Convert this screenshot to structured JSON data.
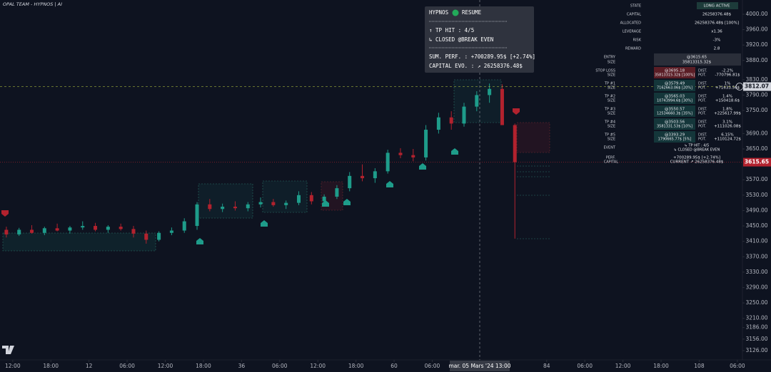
{
  "chart_data": {
    "type": "candlestick",
    "title": "OPAL TEAM - HYPNOS | AI",
    "candles": {
      "x": [
        -1,
        1,
        3,
        5,
        7,
        9,
        11,
        13,
        15,
        17,
        19,
        21,
        23,
        25,
        27,
        29,
        31,
        33,
        35,
        37,
        39,
        41,
        43,
        45,
        47,
        49,
        51,
        53,
        55,
        57,
        59,
        61,
        63,
        65,
        67,
        69,
        71,
        73,
        75,
        77,
        79
      ],
      "open": [
        3440,
        3428,
        3440,
        3432,
        3444,
        3438,
        3446,
        3450,
        3440,
        3448,
        3442,
        3430,
        3414,
        3432,
        3438,
        3450,
        3506,
        3494,
        3500,
        3496,
        3506,
        3512,
        3504,
        3510,
        3530,
        3514,
        3526,
        3548,
        3580,
        3574,
        3592,
        3640,
        3634,
        3628,
        3700,
        3732,
        3716,
        3760,
        3790,
        3806,
        3712
      ],
      "high": [
        3448,
        3445,
        3452,
        3448,
        3456,
        3450,
        3462,
        3458,
        3452,
        3456,
        3450,
        3438,
        3436,
        3446,
        3470,
        3512,
        3520,
        3508,
        3514,
        3512,
        3524,
        3520,
        3516,
        3540,
        3538,
        3532,
        3556,
        3590,
        3610,
        3600,
        3648,
        3652,
        3650,
        3712,
        3744,
        3748,
        3770,
        3800,
        3820,
        3818,
        3716
      ],
      "low": [
        3420,
        3424,
        3430,
        3426,
        3436,
        3430,
        3440,
        3436,
        3432,
        3438,
        3420,
        3404,
        3410,
        3426,
        3432,
        3440,
        3488,
        3486,
        3490,
        3488,
        3498,
        3500,
        3494,
        3504,
        3506,
        3508,
        3520,
        3540,
        3566,
        3562,
        3586,
        3626,
        3618,
        3620,
        3690,
        3700,
        3708,
        3748,
        3770,
        3760,
        3417
      ],
      "close": [
        3428,
        3440,
        3432,
        3444,
        3438,
        3446,
        3450,
        3440,
        3448,
        3442,
        3430,
        3414,
        3432,
        3438,
        3462,
        3506,
        3494,
        3500,
        3496,
        3506,
        3512,
        3504,
        3510,
        3530,
        3514,
        3526,
        3548,
        3580,
        3574,
        3592,
        3640,
        3634,
        3628,
        3700,
        3732,
        3716,
        3760,
        3790,
        3806,
        3712,
        3615.65
      ]
    },
    "up_color": "#1e9c8a",
    "down_color": "#b2222e",
    "xlim": [
      -2,
      114.8
    ],
    "xticks": [
      {
        "value": 0,
        "label": "12:00"
      },
      {
        "value": 6,
        "label": "18:00"
      },
      12,
      {
        "value": 18,
        "label": "06:00"
      },
      {
        "value": 24,
        "label": "12:00"
      },
      {
        "value": 30,
        "label": "18:00"
      },
      36,
      {
        "value": 42,
        "label": "06:00"
      },
      {
        "value": 48,
        "label": "12:00"
      },
      {
        "value": 54,
        "label": "18:00"
      },
      60,
      {
        "value": 66,
        "label": "06:00"
      },
      84,
      {
        "value": 90,
        "label": "06:00"
      },
      {
        "value": 96,
        "label": "12:00"
      },
      {
        "value": 102,
        "label": "18:00"
      },
      108,
      {
        "value": 114,
        "label": "06:00"
      }
    ],
    "ylim": [
      3102,
      4037
    ],
    "yticks": [
      {
        "value": 4000,
        "label": "4000.00"
      },
      {
        "value": 3960,
        "label": "3960.00"
      },
      {
        "value": 3920,
        "label": "3920.00"
      },
      {
        "value": 3880,
        "label": "3880.00"
      },
      {
        "value": 3830,
        "label": "3830.00"
      },
      {
        "value": 3790,
        "label": "3790.00"
      },
      {
        "value": 3750,
        "label": "3750.00"
      },
      {
        "value": 3690,
        "label": "3690.00"
      },
      {
        "value": 3650,
        "label": "3650.00"
      },
      {
        "value": 3570,
        "label": "3570.00"
      },
      {
        "value": 3530,
        "label": "3530.00"
      },
      {
        "value": 3490,
        "label": "3490.00"
      },
      {
        "value": 3450,
        "label": "3450.00"
      },
      {
        "value": 3410,
        "label": "3410.00"
      },
      {
        "value": 3370,
        "label": "3370.00"
      },
      {
        "value": 3330,
        "label": "3330.00"
      },
      {
        "value": 3290,
        "label": "3290.00"
      },
      {
        "value": 3250,
        "label": "3250.00"
      },
      {
        "value": 3210,
        "label": "3210.00"
      },
      {
        "value": 3186,
        "label": "3186.00"
      },
      {
        "value": 3156,
        "label": "3156.00"
      },
      {
        "value": 3126,
        "label": "3126.00"
      }
    ],
    "crosshair_price": 3812.07,
    "last_price": 3615.65,
    "crosshair_time": "mar. 05 Mars '24   13:00"
  },
  "tooltip": {
    "name": "HYPNOS",
    "status": "RESUME",
    "event": "↑ TP HIT : 4/5",
    "closed": "↳ CLOSED @BREAK EVEN",
    "perf": "SUM. PERF. : +700289.95$ [+2.74%]",
    "capital": "CAPITAL EVO. : ↗ 26258376.48$"
  },
  "panel": {
    "summary": [
      [
        "STATE",
        "LONG ACTIVE"
      ],
      [
        "CAPITAL",
        "26258376.48$"
      ],
      [
        "ALLOCATED",
        "26258376.48$ [100%]"
      ],
      [
        "LEVERAGE",
        "x1.36"
      ],
      [
        "RISK",
        "-3%"
      ],
      [
        "REWARD",
        "2.8"
      ]
    ],
    "entry": {
      "name": "ENTRY",
      "size_label": "SIZE",
      "price": "@3615.65",
      "size": "35813315.32$"
    },
    "levels": [
      {
        "name": "STOP LOSS",
        "size_label": "SIZE",
        "price": "@3695.18",
        "size": "35813315.32$ [100%]",
        "dist_label": "DIST.",
        "dist": "-2.2%",
        "pot_label": "POT.",
        "pot": "-770796.81$"
      },
      {
        "name": "TP #1",
        "size_label": "SIZE",
        "price": "@3579.49",
        "size": "7162663.06$ [20%]",
        "dist_label": "DIST.",
        "dist": "1%",
        "pot_label": "POT.",
        "pot": "+71633.56$"
      },
      {
        "name": "TP #2",
        "size_label": "SIZE",
        "price": "@3565.03",
        "size": "10743994.6$ [30%]",
        "dist_label": "DIST.",
        "dist": "1.4%",
        "pot_label": "POT.",
        "pot": "+150418.6$"
      },
      {
        "name": "TP #3",
        "size_label": "SIZE",
        "price": "@3550.57",
        "size": "12534660.3$ [35%]",
        "dist_label": "DIST.",
        "dist": "1.8%",
        "pot_label": "POT.",
        "pot": "+225617.99$"
      },
      {
        "name": "TP #4",
        "size_label": "SIZE",
        "price": "@3503.56",
        "size": "3581331.53$ [10%]",
        "dist_label": "DIST.",
        "dist": "3.1%",
        "pot_label": "POT.",
        "pot": "+111026.08$"
      },
      {
        "name": "TP #5",
        "size_label": "SIZE",
        "price": "@3393.29",
        "size": "1790665.77$ [5%]",
        "dist_label": "DIST.",
        "dist": "6.15%",
        "pot_label": "POT.",
        "pot": "+110124.72$"
      }
    ],
    "event": {
      "name": "EVENT",
      "line1": "↳ TP HIT : 4/5",
      "line2": "↳ CLOSED @BREAK EVEN"
    },
    "perf": {
      "name": "PERF.",
      "name2": "CAPITAL",
      "line1": "+700289.95$ [+2.74%]",
      "line2": "CURRENT ↗ 26258376.48$"
    }
  }
}
